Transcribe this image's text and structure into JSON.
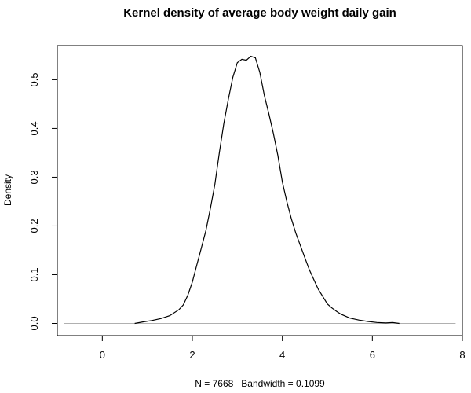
{
  "chart_data": {
    "type": "line",
    "title": "Kernel density of average body weight daily gain",
    "xlabel": "N = 7668   Bandwidth = 0.1099",
    "ylabel": "Density",
    "xlim": [
      -1.0,
      8.0
    ],
    "ylim": [
      -0.025,
      0.57
    ],
    "x_ticks": [
      0,
      2,
      4,
      6,
      8
    ],
    "y_ticks": [
      0.0,
      0.1,
      0.2,
      0.3,
      0.4,
      0.5
    ],
    "x_tick_labels": [
      "0",
      "2",
      "4",
      "6",
      "8"
    ],
    "y_tick_labels": [
      "0.0",
      "0.1",
      "0.2",
      "0.3",
      "0.4",
      "0.5"
    ],
    "baseline": {
      "y": 0,
      "color": "#b0b0b0"
    },
    "grid": false,
    "series": [
      {
        "color": "#000000",
        "x": [
          0.72,
          0.9,
          1.1,
          1.3,
          1.5,
          1.7,
          1.8,
          1.9,
          2.0,
          2.1,
          2.2,
          2.3,
          2.4,
          2.5,
          2.6,
          2.7,
          2.8,
          2.9,
          3.0,
          3.1,
          3.2,
          3.3,
          3.4,
          3.5,
          3.6,
          3.7,
          3.8,
          3.9,
          4.0,
          4.1,
          4.2,
          4.3,
          4.4,
          4.5,
          4.6,
          4.7,
          4.8,
          4.9,
          5.0,
          5.1,
          5.2,
          5.3,
          5.5,
          5.7,
          5.9,
          6.1,
          6.3,
          6.45,
          6.6
        ],
        "y": [
          0.0,
          0.003,
          0.006,
          0.01,
          0.016,
          0.028,
          0.038,
          0.058,
          0.085,
          0.12,
          0.155,
          0.19,
          0.235,
          0.285,
          0.35,
          0.41,
          0.46,
          0.505,
          0.535,
          0.542,
          0.54,
          0.548,
          0.545,
          0.515,
          0.468,
          0.43,
          0.39,
          0.345,
          0.29,
          0.25,
          0.215,
          0.185,
          0.16,
          0.135,
          0.11,
          0.09,
          0.07,
          0.055,
          0.04,
          0.032,
          0.025,
          0.019,
          0.011,
          0.007,
          0.004,
          0.002,
          0.001,
          0.002,
          0.0
        ]
      }
    ]
  }
}
